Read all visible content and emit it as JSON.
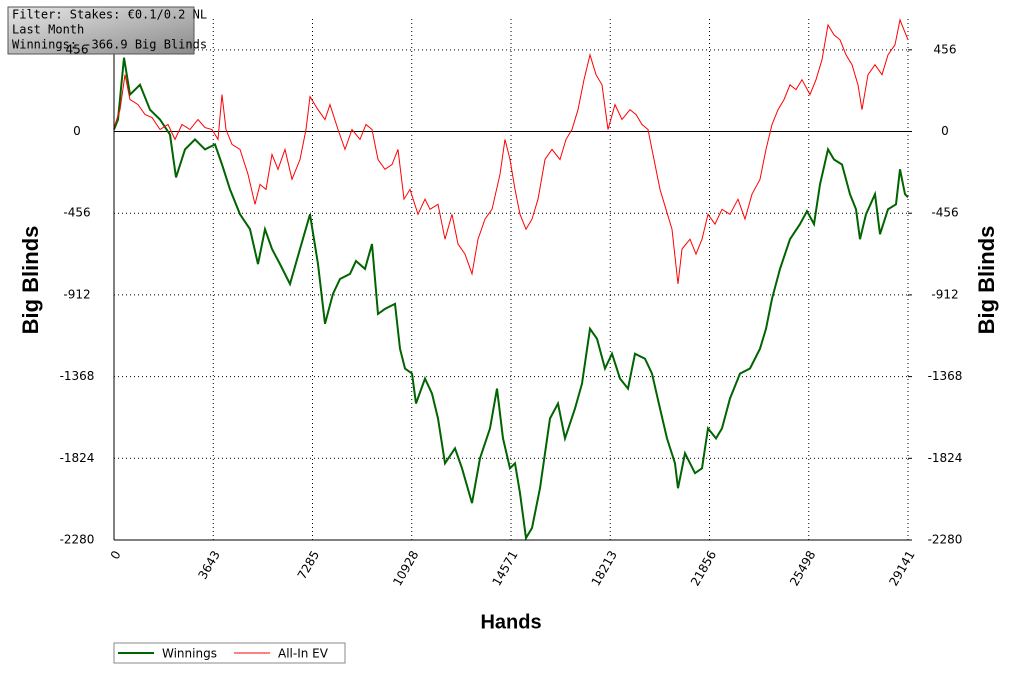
{
  "chart_data": {
    "type": "line",
    "annotations": [
      "Filter: Stakes: €0.1/0.2 NL",
      "Last Month",
      "Winnings: -366.9 Big Blinds"
    ],
    "x_label": "Hands",
    "y_label": "Big Blinds",
    "y2_label": "Big Blinds",
    "xlim": [
      0,
      29141
    ],
    "xticks": [
      0,
      3643,
      7285,
      10928,
      14571,
      18213,
      21856,
      25498,
      29141
    ],
    "ylim": [
      -2280,
      628
    ],
    "yticks": [
      -2280,
      -1824,
      -1368,
      -912,
      -456,
      0,
      456
    ],
    "y2lim": [
      -2280,
      628
    ],
    "y2ticks": [
      -2280,
      -1824,
      -1368,
      -912,
      -456,
      0,
      456
    ],
    "grid": true,
    "legend": "bottom-left",
    "series": [
      {
        "name": "Winnings",
        "color": "#006400",
        "x": [
          0,
          147,
          367,
          587,
          954,
          1321,
          1688,
          2055,
          2275,
          2606,
          2973,
          3340,
          3707,
          3964,
          4257,
          4624,
          4991,
          5285,
          5541,
          5799,
          6092,
          6459,
          6826,
          7193,
          7487,
          7744,
          8037,
          8294,
          8661,
          8881,
          9212,
          9469,
          9689,
          9946,
          10313,
          10496,
          10680,
          10937,
          11083,
          11414,
          11671,
          11891,
          12148,
          12515,
          12772,
          13139,
          13433,
          13800,
          14056,
          14277,
          14533,
          14717,
          14901,
          15121,
          15341,
          15635,
          16002,
          16295,
          16552,
          16919,
          17176,
          17470,
          17727,
          18020,
          18277,
          18571,
          18864,
          19121,
          19488,
          19745,
          20039,
          20296,
          20590,
          20700,
          20957,
          21324,
          21581,
          21801,
          22095,
          22315,
          22608,
          22975,
          23342,
          23709,
          23929,
          24150,
          24443,
          24810,
          25177,
          25434,
          25691,
          25911,
          26205,
          26425,
          26718,
          27012,
          27232,
          27379,
          27599,
          27929,
          28113,
          28406,
          28700,
          28847,
          29030,
          29141
        ],
        "values": [
          11,
          67,
          412,
          206,
          261,
          122,
          67,
          -17,
          -256,
          -100,
          -44,
          -100,
          -72,
          -184,
          -323,
          -462,
          -545,
          -740,
          -545,
          -656,
          -740,
          -851,
          -656,
          -462,
          -740,
          -1073,
          -906,
          -823,
          -795,
          -723,
          -767,
          -628,
          -1018,
          -990,
          -962,
          -1212,
          -1323,
          -1351,
          -1518,
          -1379,
          -1463,
          -1602,
          -1852,
          -1768,
          -1880,
          -2074,
          -1824,
          -1657,
          -1435,
          -1713,
          -1880,
          -1852,
          -2019,
          -2269,
          -2213,
          -1991,
          -1602,
          -1518,
          -1713,
          -1546,
          -1407,
          -1101,
          -1157,
          -1323,
          -1240,
          -1379,
          -1435,
          -1240,
          -1268,
          -1351,
          -1546,
          -1713,
          -1852,
          -1991,
          -1796,
          -1907,
          -1880,
          -1657,
          -1713,
          -1657,
          -1490,
          -1351,
          -1323,
          -1212,
          -1101,
          -934,
          -767,
          -601,
          -517,
          -445,
          -517,
          -295,
          -100,
          -156,
          -184,
          -350,
          -434,
          -601,
          -462,
          -350,
          -573,
          -434,
          -406,
          -211,
          -350,
          -367
        ]
      },
      {
        "name": "All-In EV",
        "color": "#ff0000",
        "x": [
          0,
          220,
          404,
          587,
          881,
          1138,
          1395,
          1688,
          1982,
          2239,
          2496,
          2789,
          3083,
          3340,
          3597,
          3817,
          3964,
          4110,
          4331,
          4624,
          4918,
          5175,
          5358,
          5578,
          5799,
          6019,
          6276,
          6533,
          6826,
          7046,
          7193,
          7487,
          7744,
          7927,
          8221,
          8478,
          8735,
          9028,
          9248,
          9469,
          9689,
          9946,
          10203,
          10423,
          10643,
          10863,
          11157,
          11414,
          11597,
          11891,
          12148,
          12405,
          12625,
          12882,
          13139,
          13359,
          13616,
          13873,
          14166,
          14350,
          14533,
          14717,
          14901,
          15121,
          15341,
          15561,
          15818,
          16075,
          16368,
          16589,
          16809,
          17029,
          17249,
          17470,
          17690,
          17910,
          18130,
          18387,
          18644,
          18937,
          19158,
          19378,
          19598,
          19818,
          20039,
          20259,
          20479,
          20700,
          20846,
          21140,
          21359,
          21580,
          21801,
          22058,
          22315,
          22608,
          22902,
          23158,
          23415,
          23709,
          23929,
          24150,
          24369,
          24589,
          24810,
          25030,
          25250,
          25544,
          25764,
          25984,
          26205,
          26425,
          26645,
          26864,
          27085,
          27305,
          27452,
          27672,
          27929,
          28186,
          28406,
          28663,
          28847,
          28993,
          29141
        ],
        "values": [
          22,
          122,
          317,
          178,
          150,
          95,
          78,
          11,
          39,
          -44,
          39,
          11,
          67,
          22,
          11,
          -44,
          206,
          11,
          -72,
          -100,
          -239,
          -406,
          -295,
          -323,
          -128,
          -211,
          -100,
          -267,
          -156,
          11,
          195,
          122,
          67,
          150,
          11,
          -100,
          11,
          -44,
          39,
          11,
          -156,
          -211,
          -184,
          -100,
          -378,
          -323,
          -462,
          -378,
          -434,
          -406,
          -601,
          -462,
          -628,
          -684,
          -795,
          -601,
          -489,
          -434,
          -239,
          -44,
          -156,
          -323,
          -462,
          -545,
          -489,
          -378,
          -156,
          -100,
          -156,
          -44,
          11,
          122,
          289,
          428,
          317,
          261,
          11,
          150,
          67,
          122,
          95,
          39,
          11,
          -156,
          -323,
          -434,
          -545,
          -851,
          -656,
          -601,
          -684,
          -601,
          -462,
          -517,
          -434,
          -462,
          -378,
          -489,
          -350,
          -267,
          -100,
          39,
          122,
          178,
          261,
          234,
          289,
          206,
          289,
          400,
          595,
          539,
          512,
          428,
          373,
          261,
          122,
          317,
          373,
          317,
          428,
          484,
          623,
          567,
          512
        ]
      }
    ]
  }
}
